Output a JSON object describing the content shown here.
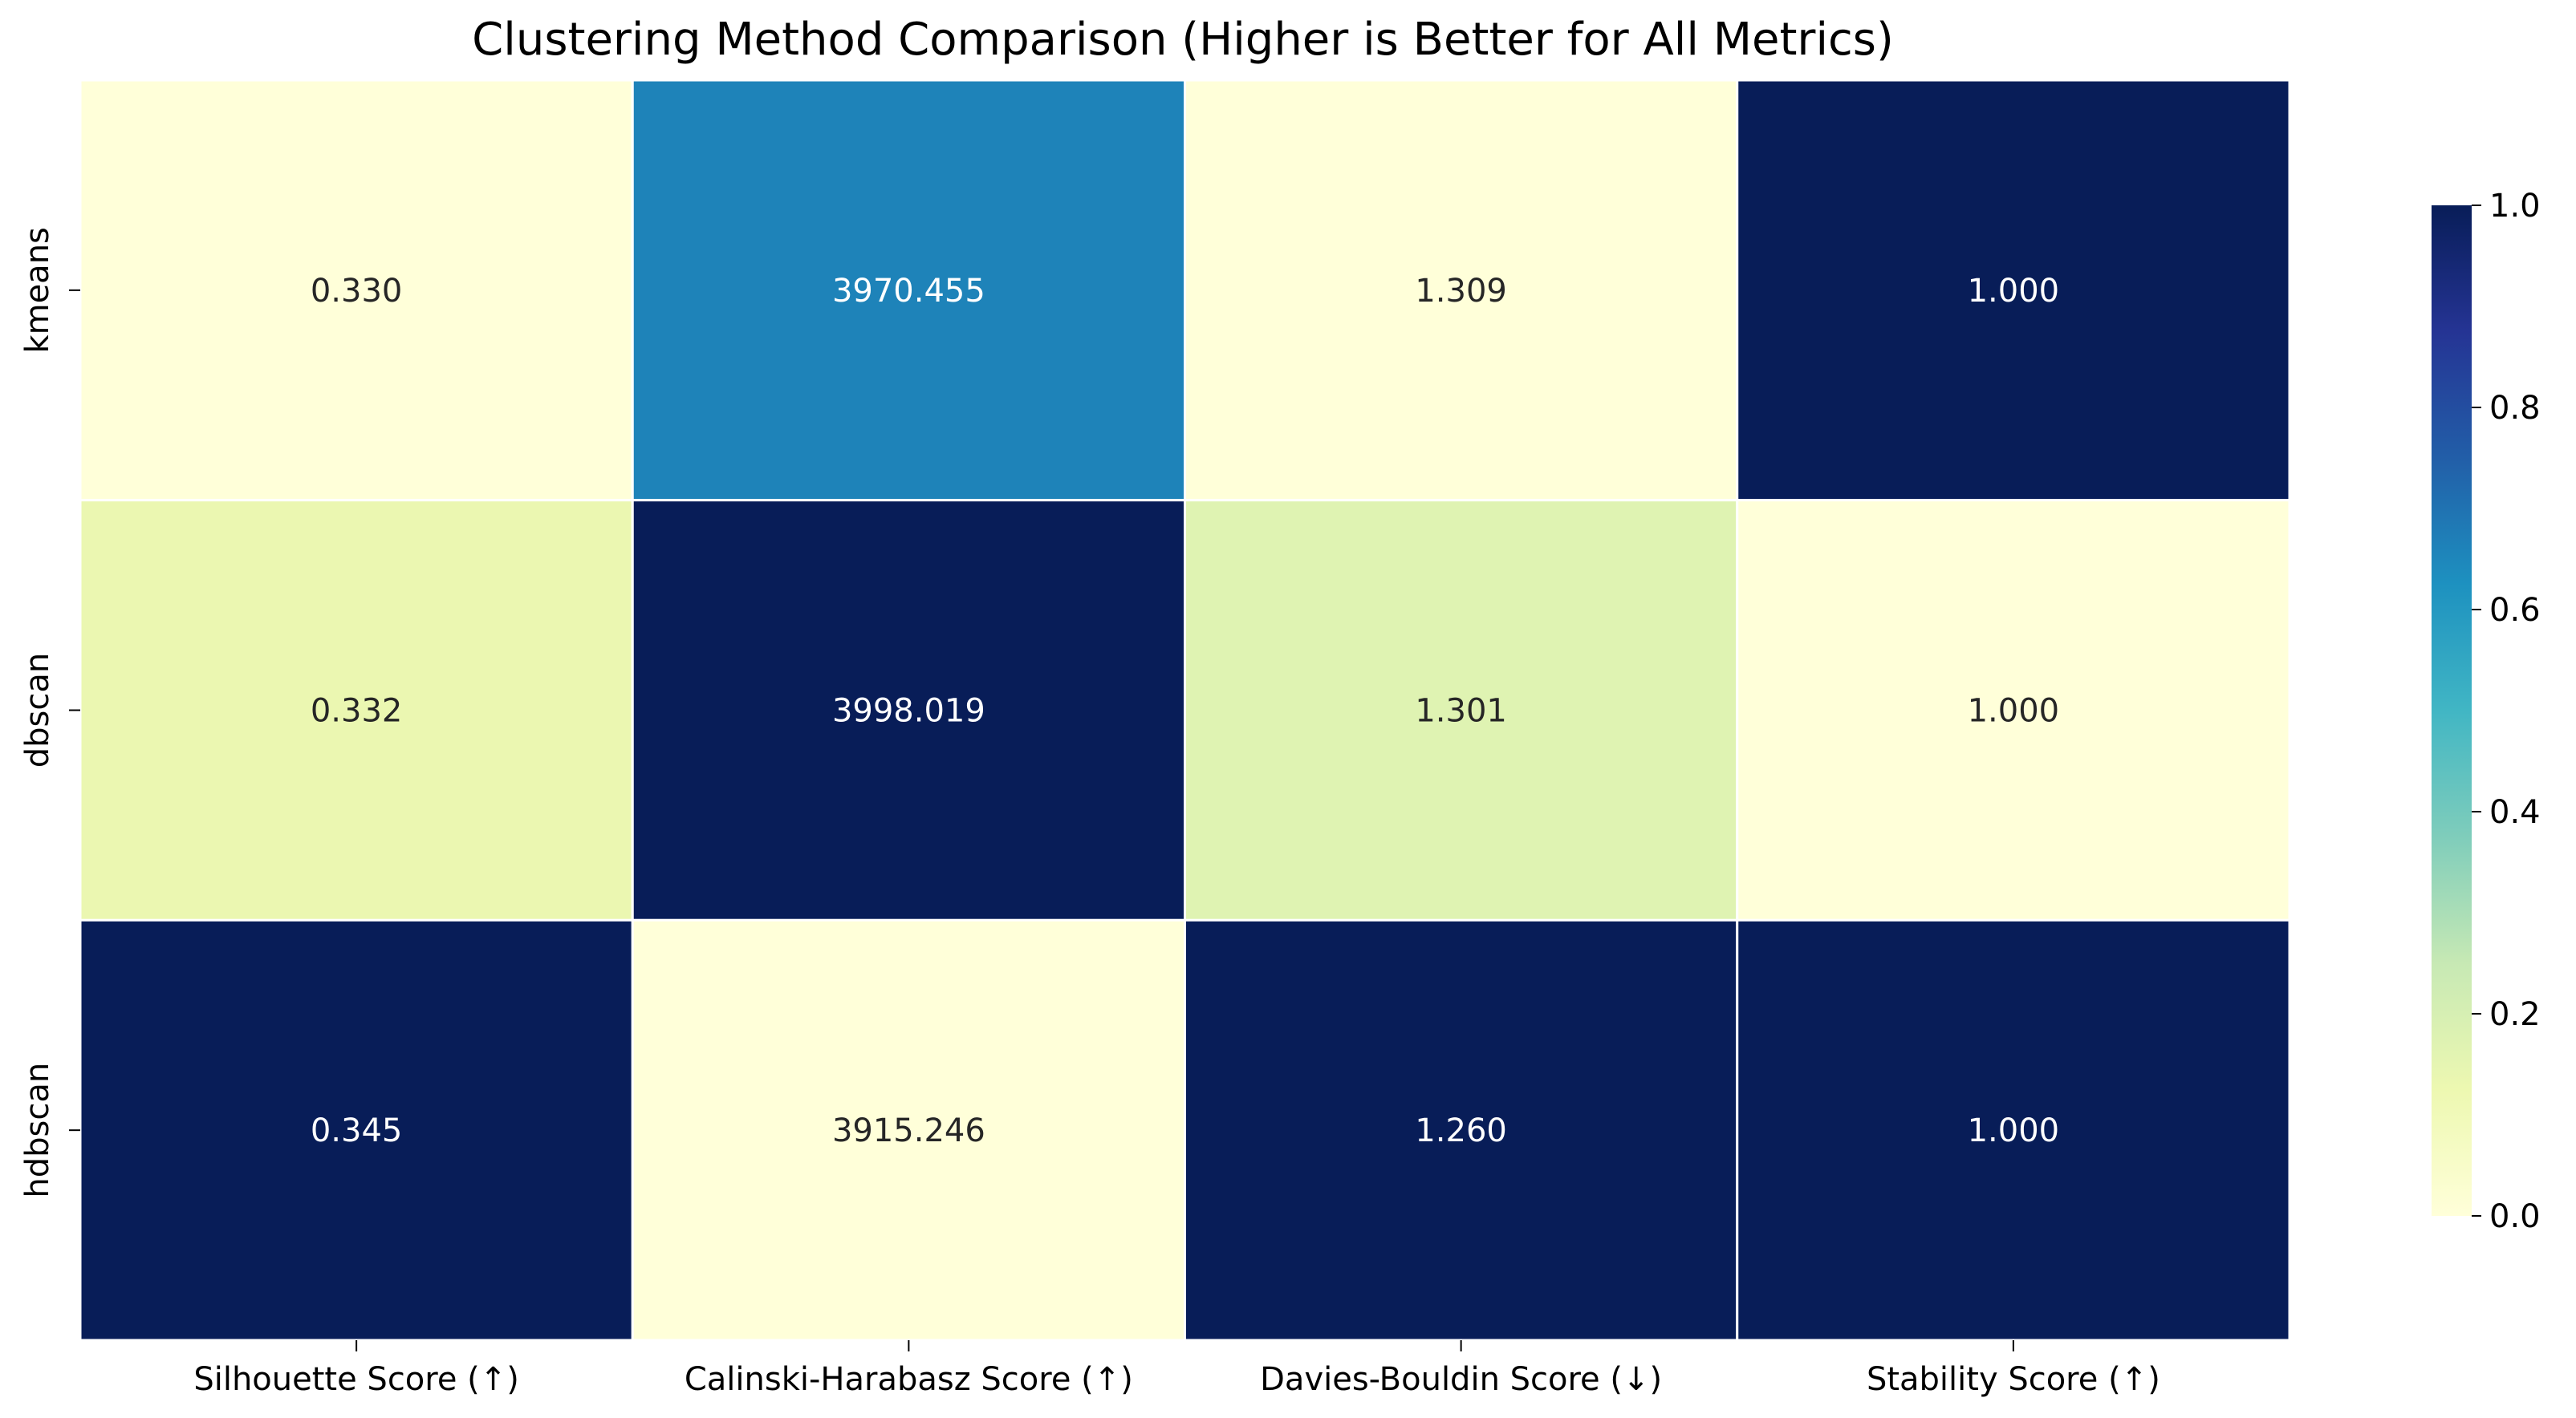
{
  "chart_data": {
    "type": "heatmap",
    "title": "Clustering Method Comparison (Higher is Better for All Metrics)",
    "xlabel": "",
    "ylabel": "",
    "rows": [
      "kmeans",
      "dbscan",
      "hdbscan"
    ],
    "columns": [
      "Silhouette Score (↑)",
      "Calinski-Harabasz Score (↑)",
      "Davies-Bouldin Score (↓)",
      "Stability Score (↑)"
    ],
    "annotations": [
      [
        "0.330",
        "3970.455",
        "1.309",
        "1.000"
      ],
      [
        "0.332",
        "3998.019",
        "1.301",
        "1.000"
      ],
      [
        "0.345",
        "3915.246",
        "1.260",
        "1.000"
      ]
    ],
    "color_values": [
      [
        0.0,
        0.66,
        0.0,
        1.0
      ],
      [
        0.13,
        1.0,
        0.17,
        0.0
      ],
      [
        1.0,
        0.0,
        1.0,
        1.0
      ]
    ],
    "colormap": "YlGnBu",
    "colorbar": {
      "range": [
        0.0,
        1.0
      ],
      "ticks": [
        "0.0",
        "0.2",
        "0.4",
        "0.6",
        "0.8",
        "1.0"
      ]
    },
    "grid": false,
    "legend": "colorbar-right"
  }
}
